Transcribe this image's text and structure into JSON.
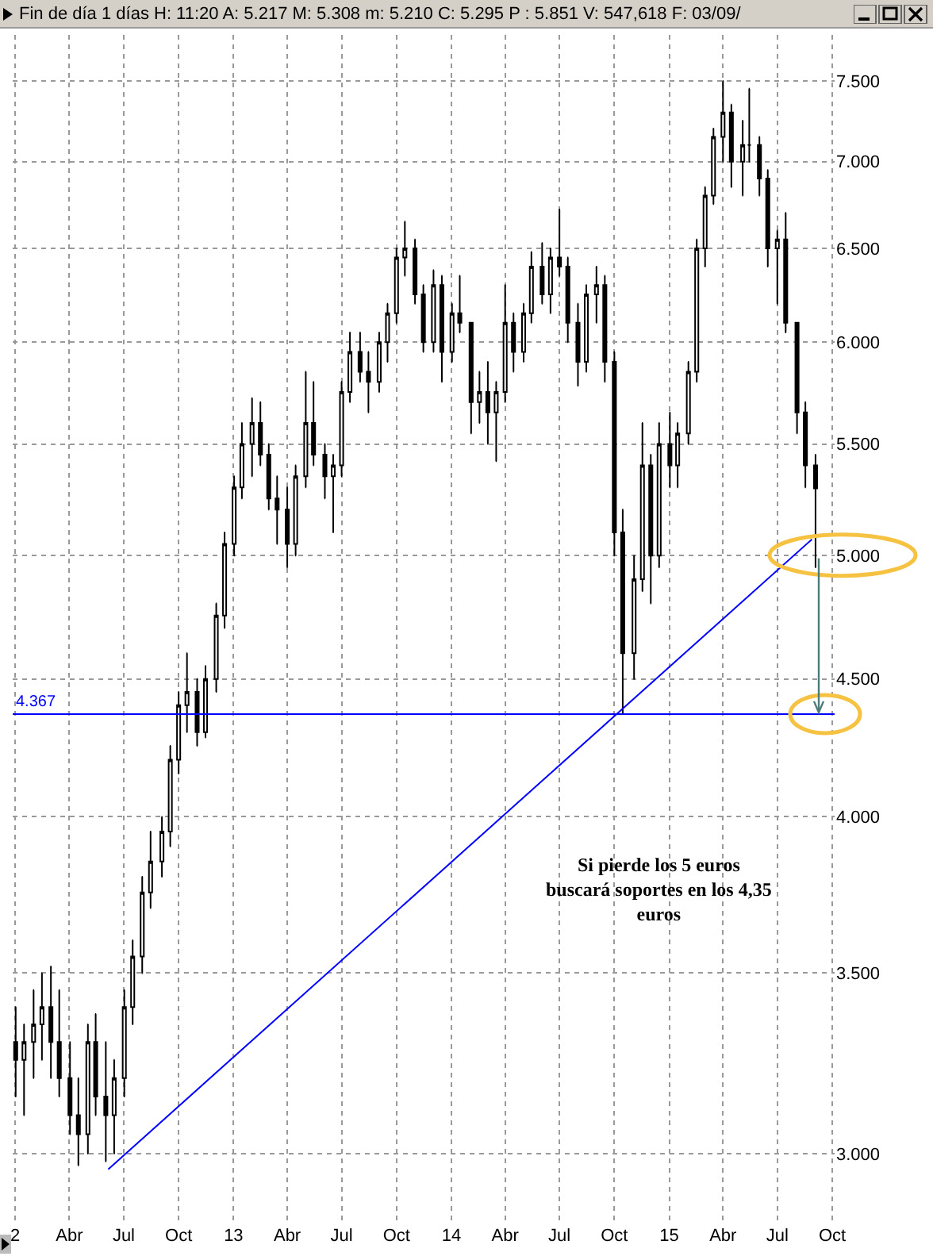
{
  "chart_data": {
    "type": "candlestick",
    "title": "Fin de día 1 días  H: 11:20  A: 5.217  M: 5.308  m: 5.210  C: 5.295  P : 5.851  V: 547,618  F: 03/09/",
    "x": [
      "2012-01-02",
      "2012-01-16",
      "2012-02-01",
      "2012-02-15",
      "2012-03-01",
      "2012-03-15",
      "2012-04-02",
      "2012-04-16",
      "2012-05-02",
      "2012-05-15",
      "2012-06-01",
      "2012-06-15",
      "2012-07-02",
      "2012-07-16",
      "2012-08-01",
      "2012-08-15",
      "2012-09-03",
      "2012-09-17",
      "2012-10-01",
      "2012-10-15",
      "2012-11-01",
      "2012-11-15",
      "2012-12-03",
      "2012-12-17",
      "2013-01-02",
      "2013-01-15",
      "2013-02-01",
      "2013-02-15",
      "2013-03-01",
      "2013-03-15",
      "2013-04-01",
      "2013-04-15",
      "2013-05-02",
      "2013-05-15",
      "2013-06-03",
      "2013-06-17",
      "2013-07-01",
      "2013-07-15",
      "2013-08-01",
      "2013-08-15",
      "2013-09-02",
      "2013-09-16",
      "2013-10-01",
      "2013-10-15",
      "2013-11-01",
      "2013-11-15",
      "2013-12-02",
      "2013-12-16",
      "2014-01-02",
      "2014-01-15",
      "2014-02-03",
      "2014-02-17",
      "2014-03-03",
      "2014-03-17",
      "2014-04-01",
      "2014-04-15",
      "2014-05-02",
      "2014-05-15",
      "2014-06-02",
      "2014-06-16",
      "2014-07-01",
      "2014-07-15",
      "2014-08-01",
      "2014-08-15",
      "2014-09-01",
      "2014-09-15",
      "2014-10-01",
      "2014-10-15",
      "2014-11-03",
      "2014-11-17",
      "2014-12-01",
      "2014-12-15",
      "2015-01-02",
      "2015-01-15",
      "2015-02-02",
      "2015-02-16",
      "2015-03-02",
      "2015-03-16",
      "2015-04-01",
      "2015-04-15",
      "2015-05-04",
      "2015-05-15",
      "2015-06-01",
      "2015-06-15",
      "2015-07-01",
      "2015-07-15",
      "2015-08-03",
      "2015-08-17",
      "2015-09-03"
    ],
    "ohlc": [
      [
        3.3,
        3.4,
        3.15,
        3.25
      ],
      [
        3.25,
        3.35,
        3.1,
        3.3
      ],
      [
        3.3,
        3.45,
        3.2,
        3.35
      ],
      [
        3.35,
        3.5,
        3.25,
        3.4
      ],
      [
        3.4,
        3.52,
        3.2,
        3.3
      ],
      [
        3.3,
        3.45,
        3.15,
        3.2
      ],
      [
        3.2,
        3.3,
        3.05,
        3.1
      ],
      [
        3.1,
        3.2,
        2.97,
        3.05
      ],
      [
        3.05,
        3.35,
        3.0,
        3.3
      ],
      [
        3.3,
        3.38,
        3.1,
        3.15
      ],
      [
        3.15,
        3.3,
        2.98,
        3.1
      ],
      [
        3.1,
        3.25,
        3.0,
        3.2
      ],
      [
        3.2,
        3.45,
        3.15,
        3.4
      ],
      [
        3.4,
        3.6,
        3.35,
        3.55
      ],
      [
        3.55,
        3.8,
        3.5,
        3.75
      ],
      [
        3.75,
        3.95,
        3.7,
        3.85
      ],
      [
        3.85,
        4.0,
        3.8,
        3.95
      ],
      [
        3.95,
        4.25,
        3.9,
        4.2
      ],
      [
        4.2,
        4.45,
        4.15,
        4.4
      ],
      [
        4.4,
        4.6,
        4.3,
        4.45
      ],
      [
        4.45,
        4.5,
        4.25,
        4.3
      ],
      [
        4.3,
        4.55,
        4.28,
        4.5
      ],
      [
        4.5,
        4.8,
        4.45,
        4.75
      ],
      [
        4.75,
        5.1,
        4.7,
        5.05
      ],
      [
        5.05,
        5.35,
        5.0,
        5.3
      ],
      [
        5.3,
        5.6,
        5.25,
        5.5
      ],
      [
        5.5,
        5.72,
        5.35,
        5.6
      ],
      [
        5.6,
        5.7,
        5.4,
        5.45
      ],
      [
        5.45,
        5.5,
        5.2,
        5.25
      ],
      [
        5.25,
        5.35,
        5.05,
        5.2
      ],
      [
        5.2,
        5.3,
        4.95,
        5.05
      ],
      [
        5.05,
        5.4,
        5.0,
        5.35
      ],
      [
        5.35,
        5.85,
        5.3,
        5.6
      ],
      [
        5.6,
        5.8,
        5.4,
        5.45
      ],
      [
        5.45,
        5.5,
        5.25,
        5.35
      ],
      [
        5.35,
        5.45,
        5.1,
        5.4
      ],
      [
        5.4,
        5.8,
        5.35,
        5.75
      ],
      [
        5.75,
        6.05,
        5.7,
        5.95
      ],
      [
        5.95,
        6.05,
        5.8,
        5.85
      ],
      [
        5.85,
        5.95,
        5.65,
        5.8
      ],
      [
        5.8,
        6.05,
        5.75,
        6.0
      ],
      [
        6.0,
        6.2,
        5.9,
        6.15
      ],
      [
        6.15,
        6.5,
        6.1,
        6.45
      ],
      [
        6.45,
        6.65,
        6.35,
        6.5
      ],
      [
        6.5,
        6.55,
        6.2,
        6.25
      ],
      [
        6.25,
        6.3,
        5.95,
        6.0
      ],
      [
        6.0,
        6.38,
        5.95,
        6.3
      ],
      [
        6.3,
        6.35,
        5.8,
        5.95
      ],
      [
        5.95,
        6.2,
        5.9,
        6.15
      ],
      [
        6.15,
        6.35,
        6.05,
        6.1
      ],
      [
        6.1,
        6.1,
        5.55,
        5.7
      ],
      [
        5.7,
        5.85,
        5.6,
        5.75
      ],
      [
        5.75,
        5.9,
        5.5,
        5.65
      ],
      [
        5.65,
        5.8,
        5.42,
        5.75
      ],
      [
        5.75,
        6.3,
        5.7,
        6.1
      ],
      [
        6.1,
        6.15,
        5.85,
        5.95
      ],
      [
        5.95,
        6.2,
        5.9,
        6.15
      ],
      [
        6.15,
        6.48,
        6.1,
        6.4
      ],
      [
        6.4,
        6.53,
        6.2,
        6.25
      ],
      [
        6.25,
        6.5,
        6.15,
        6.45
      ],
      [
        6.45,
        6.72,
        6.35,
        6.4
      ],
      [
        6.4,
        6.45,
        6.0,
        6.1
      ],
      [
        6.1,
        6.2,
        5.78,
        5.9
      ],
      [
        5.9,
        6.3,
        5.85,
        6.25
      ],
      [
        6.25,
        6.4,
        6.1,
        6.3
      ],
      [
        6.3,
        6.35,
        5.8,
        5.9
      ],
      [
        5.9,
        5.95,
        5.0,
        5.1
      ],
      [
        5.1,
        5.2,
        4.37,
        4.6
      ],
      [
        4.6,
        5.0,
        4.5,
        4.9
      ],
      [
        4.9,
        5.6,
        4.85,
        5.4
      ],
      [
        5.4,
        5.45,
        4.8,
        5.0
      ],
      [
        5.0,
        5.6,
        4.95,
        5.5
      ],
      [
        5.5,
        5.65,
        5.3,
        5.4
      ],
      [
        5.4,
        5.6,
        5.3,
        5.55
      ],
      [
        5.55,
        5.9,
        5.5,
        5.85
      ],
      [
        5.85,
        6.55,
        5.8,
        6.5
      ],
      [
        6.5,
        6.85,
        6.4,
        6.8
      ],
      [
        6.8,
        7.2,
        6.75,
        7.15
      ],
      [
        7.15,
        7.5,
        7.0,
        7.3
      ],
      [
        7.3,
        7.35,
        6.85,
        7.0
      ],
      [
        7.0,
        7.25,
        6.8,
        7.1
      ],
      [
        7.1,
        7.45,
        7.0,
        7.1
      ],
      [
        7.1,
        7.15,
        6.8,
        6.9
      ],
      [
        6.9,
        6.95,
        6.4,
        6.5
      ],
      [
        6.5,
        6.6,
        6.2,
        6.55
      ],
      [
        6.55,
        6.7,
        6.05,
        6.1
      ],
      [
        6.1,
        6.1,
        5.55,
        5.65
      ],
      [
        5.65,
        5.7,
        5.3,
        5.4
      ],
      [
        5.4,
        5.45,
        4.95,
        5.295
      ]
    ],
    "series": [
      {
        "type": "line",
        "color": "#0000ff",
        "x": [
          "2012-06-05",
          "2015-08-28"
        ],
        "values": [
          2.96,
          5.07
        ]
      }
    ],
    "ref_lines": [
      {
        "axis": "y",
        "value": 4.367,
        "label": "4.367",
        "color": "#0000ff"
      }
    ],
    "annotations": [
      "Si pierde los 5 euros\nbuscará soportes en los 4,35\neuros"
    ],
    "log": true,
    "grid": true,
    "xlim": [
      "2011-12-28",
      "2015-10-05"
    ],
    "xticks": [
      {
        "value": "2012-01-01",
        "label": "2"
      },
      {
        "value": "2012-04-01",
        "label": "Abr"
      },
      {
        "value": "2012-07-01",
        "label": "Jul"
      },
      {
        "value": "2012-10-01",
        "label": "Oct"
      },
      {
        "value": "2013-01-01",
        "label": "13"
      },
      {
        "value": "2013-04-01",
        "label": "Abr"
      },
      {
        "value": "2013-07-01",
        "label": "Jul"
      },
      {
        "value": "2013-10-01",
        "label": "Oct"
      },
      {
        "value": "2014-01-01",
        "label": "14"
      },
      {
        "value": "2014-04-01",
        "label": "Abr"
      },
      {
        "value": "2014-07-01",
        "label": "Jul"
      },
      {
        "value": "2014-10-01",
        "label": "Oct"
      },
      {
        "value": "2015-01-01",
        "label": "15"
      },
      {
        "value": "2015-04-01",
        "label": "Abr"
      },
      {
        "value": "2015-07-01",
        "label": "Jul"
      },
      {
        "value": "2015-10-01",
        "label": "Oct"
      }
    ],
    "ylim": [
      2.83,
      7.8
    ],
    "yticks": [
      {
        "value": 3,
        "label": "3.000"
      },
      {
        "value": 3.5,
        "label": "3.500"
      },
      {
        "value": 4,
        "label": "4.000"
      },
      {
        "value": 4.5,
        "label": "4.500"
      },
      {
        "value": 5,
        "label": "5.000"
      },
      {
        "value": 5.5,
        "label": "5.500"
      },
      {
        "value": 6,
        "label": "6.000"
      },
      {
        "value": 6.5,
        "label": "6.500"
      },
      {
        "value": 7,
        "label": "7.000"
      },
      {
        "value": 7.5,
        "label": "7.500"
      }
    ]
  }
}
